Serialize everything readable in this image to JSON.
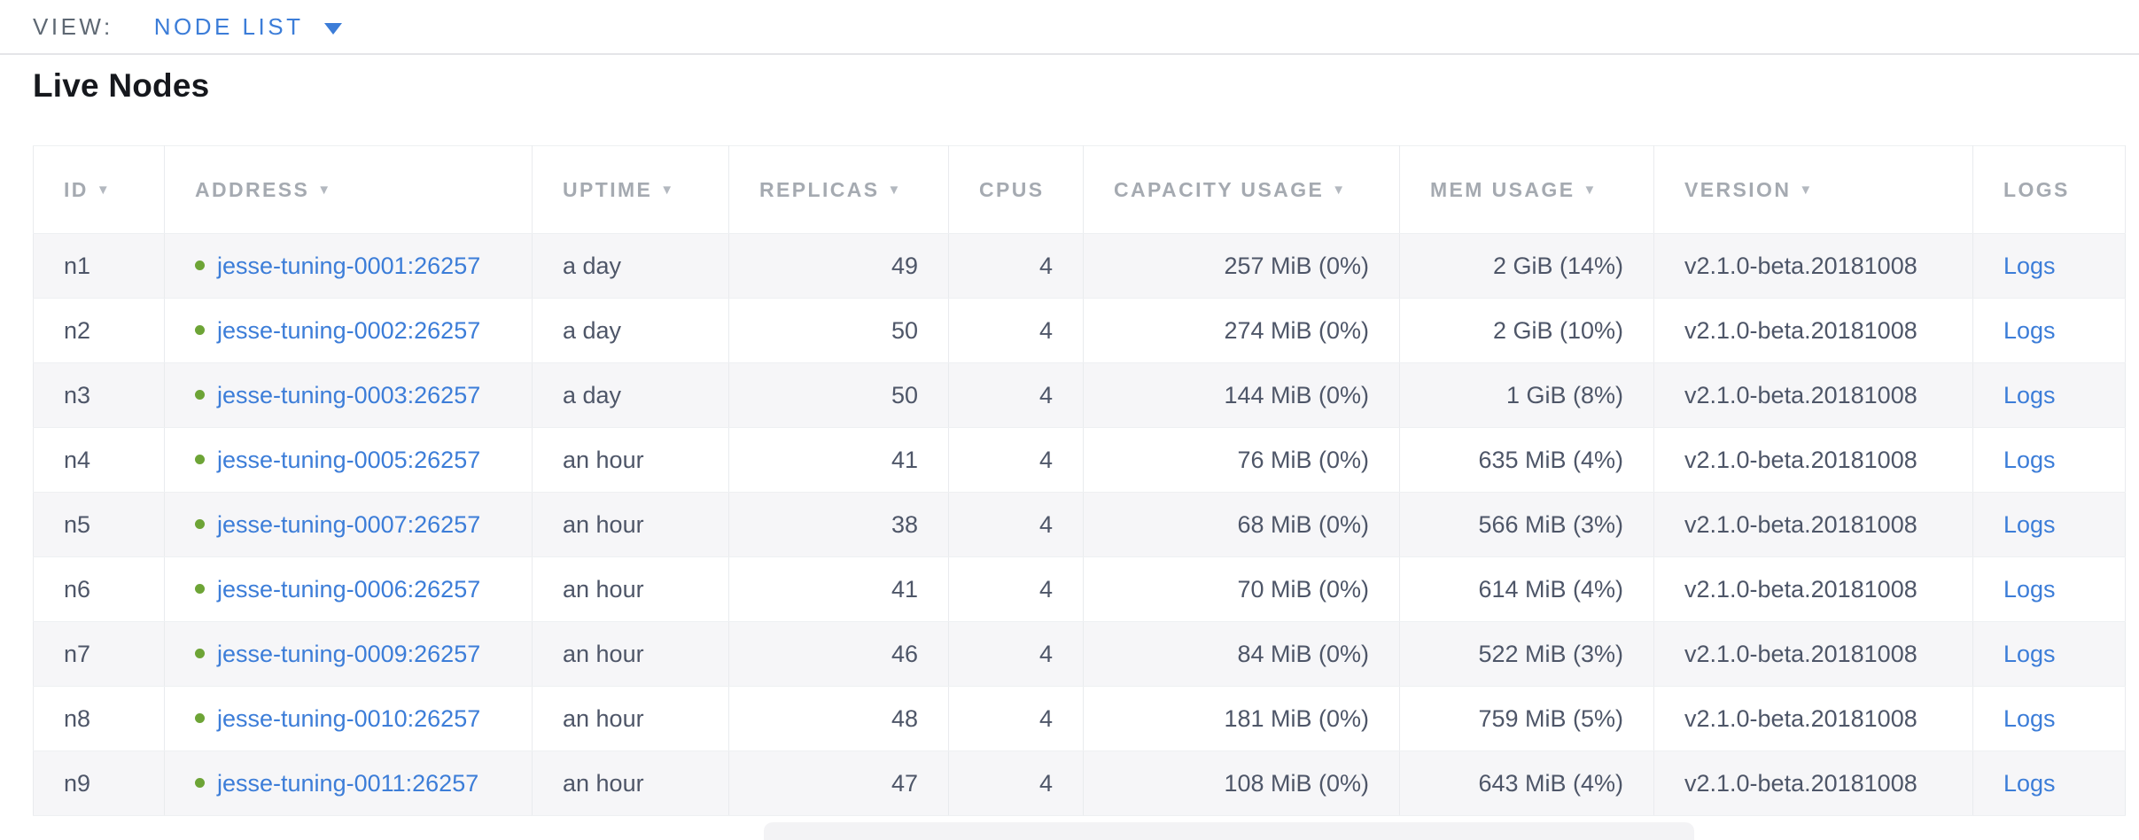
{
  "view_bar": {
    "label": "VIEW:",
    "selected": "NODE LIST"
  },
  "page": {
    "title": "Live Nodes"
  },
  "icons": {
    "sort": "▼"
  },
  "colors": {
    "accent_blue": "#3c7dd8",
    "live_green": "#6da436",
    "header_grey": "#a5aab1",
    "body_text": "#4e5668",
    "alt_row_bg": "#f6f6f8"
  },
  "table": {
    "logs_label": "Logs",
    "columns": [
      {
        "label": "ID",
        "key": "id",
        "sortable": true,
        "align": "left"
      },
      {
        "label": "ADDRESS",
        "key": "address",
        "sortable": true,
        "align": "left"
      },
      {
        "label": "UPTIME",
        "key": "uptime",
        "sortable": true,
        "align": "left"
      },
      {
        "label": "REPLICAS",
        "key": "replicas",
        "sortable": true,
        "align": "right"
      },
      {
        "label": "CPUS",
        "key": "cpus",
        "sortable": false,
        "align": "right"
      },
      {
        "label": "CAPACITY USAGE",
        "key": "capacity",
        "sortable": true,
        "align": "right"
      },
      {
        "label": "MEM USAGE",
        "key": "mem",
        "sortable": true,
        "align": "right"
      },
      {
        "label": "VERSION",
        "key": "version",
        "sortable": true,
        "align": "left"
      },
      {
        "label": "LOGS",
        "key": "logs",
        "sortable": false,
        "align": "left"
      }
    ],
    "rows": [
      {
        "id": "n1",
        "address": "jesse-tuning-0001:26257",
        "uptime": "a day",
        "replicas": "49",
        "cpus": "4",
        "capacity": "257 MiB (0%)",
        "mem": "2 GiB (14%)",
        "version": "v2.1.0-beta.20181008"
      },
      {
        "id": "n2",
        "address": "jesse-tuning-0002:26257",
        "uptime": "a day",
        "replicas": "50",
        "cpus": "4",
        "capacity": "274 MiB (0%)",
        "mem": "2 GiB (10%)",
        "version": "v2.1.0-beta.20181008"
      },
      {
        "id": "n3",
        "address": "jesse-tuning-0003:26257",
        "uptime": "a day",
        "replicas": "50",
        "cpus": "4",
        "capacity": "144 MiB (0%)",
        "mem": "1 GiB (8%)",
        "version": "v2.1.0-beta.20181008"
      },
      {
        "id": "n4",
        "address": "jesse-tuning-0005:26257",
        "uptime": "an hour",
        "replicas": "41",
        "cpus": "4",
        "capacity": "76 MiB (0%)",
        "mem": "635 MiB (4%)",
        "version": "v2.1.0-beta.20181008"
      },
      {
        "id": "n5",
        "address": "jesse-tuning-0007:26257",
        "uptime": "an hour",
        "replicas": "38",
        "cpus": "4",
        "capacity": "68 MiB (0%)",
        "mem": "566 MiB (3%)",
        "version": "v2.1.0-beta.20181008"
      },
      {
        "id": "n6",
        "address": "jesse-tuning-0006:26257",
        "uptime": "an hour",
        "replicas": "41",
        "cpus": "4",
        "capacity": "70 MiB (0%)",
        "mem": "614 MiB (4%)",
        "version": "v2.1.0-beta.20181008"
      },
      {
        "id": "n7",
        "address": "jesse-tuning-0009:26257",
        "uptime": "an hour",
        "replicas": "46",
        "cpus": "4",
        "capacity": "84 MiB (0%)",
        "mem": "522 MiB (3%)",
        "version": "v2.1.0-beta.20181008"
      },
      {
        "id": "n8",
        "address": "jesse-tuning-0010:26257",
        "uptime": "an hour",
        "replicas": "48",
        "cpus": "4",
        "capacity": "181 MiB (0%)",
        "mem": "759 MiB (5%)",
        "version": "v2.1.0-beta.20181008"
      },
      {
        "id": "n9",
        "address": "jesse-tuning-0011:26257",
        "uptime": "an hour",
        "replicas": "47",
        "cpus": "4",
        "capacity": "108 MiB (0%)",
        "mem": "643 MiB (4%)",
        "version": "v2.1.0-beta.20181008"
      }
    ]
  }
}
